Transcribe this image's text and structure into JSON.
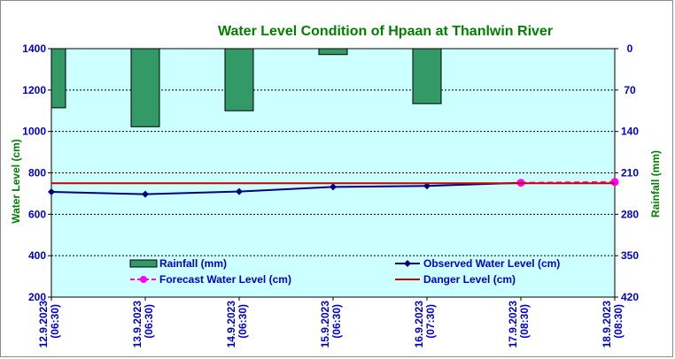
{
  "chart_data": {
    "type": "bar+line",
    "title": "Water Level Condition  of  Hpaan  at  Thanlwin  River",
    "ylabel_left": "Water Level (cm)",
    "ylabel_right": "Rainfall (mm)",
    "ylim_left": [
      200,
      1400
    ],
    "yticks_left": [
      "200",
      "400",
      "600",
      "800",
      "1000",
      "1200",
      "1400"
    ],
    "ylim_right": [
      0,
      420
    ],
    "right_axis_inverted": true,
    "yticks_right": [
      "0",
      "70",
      "140",
      "210",
      "280",
      "350",
      "420"
    ],
    "x_labels": [
      [
        "12.9.2023",
        "(06:30)"
      ],
      [
        "13.9.2023",
        "(06:30)"
      ],
      [
        "14.9.2023",
        "(06:30)"
      ],
      [
        "15.9.2023",
        "(06:30)"
      ],
      [
        "16.9.2023",
        "(07:30)"
      ],
      [
        "17.9.2023",
        "(08:30)"
      ],
      [
        "18.9.2023",
        "(08:30)"
      ]
    ],
    "grid": true,
    "legend_position": "bottom",
    "legend": {
      "rainfall": "Rainfall (mm)",
      "observed": "Observed Water Level (cm)",
      "forecast": "Forecast Water Level (cm)",
      "danger": "Danger Level (cm)"
    },
    "series": [
      {
        "name": "Rainfall (mm)",
        "type": "bar",
        "axis": "right",
        "x": [
          0,
          1,
          2,
          3,
          4
        ],
        "values": [
          100,
          132,
          105,
          10,
          93
        ],
        "color": "#339966"
      },
      {
        "name": "Observed Water Level (cm)",
        "type": "line",
        "axis": "left",
        "x": [
          0,
          1,
          2,
          3,
          4,
          5
        ],
        "values": [
          708,
          697,
          710,
          732,
          737,
          752
        ],
        "color": "#000080"
      },
      {
        "name": "Forecast Water Level (cm)",
        "type": "line",
        "axis": "left",
        "x": [
          5,
          6
        ],
        "values": [
          752,
          756
        ],
        "color": "#ff00ff",
        "dashed": true
      },
      {
        "name": "Danger Level (cm)",
        "type": "line",
        "axis": "left",
        "x": [
          0,
          6
        ],
        "values": [
          750,
          750
        ],
        "color": "#cc0000"
      }
    ]
  },
  "colors": {
    "plot_background": "#ccffff",
    "title": "#008000",
    "axis_text": "#0000cc",
    "ylabel": "#008000"
  }
}
